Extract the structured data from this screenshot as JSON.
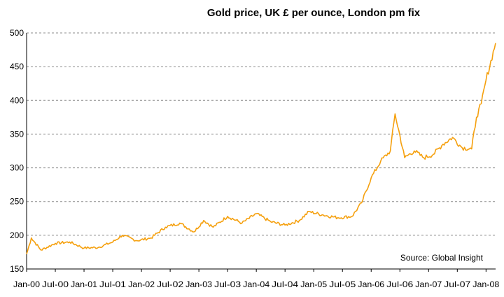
{
  "chart_data": {
    "type": "line",
    "title": "Gold price, UK £ per ounce, London pm fix",
    "source": "Source: Global Insight",
    "xlabel": "",
    "ylabel": "",
    "ylim": [
      150,
      500
    ],
    "yticks": [
      150,
      200,
      250,
      300,
      350,
      400,
      450,
      500
    ],
    "grid": "horizontal",
    "x_tick_labels": [
      "Jan-00",
      "Jul-00",
      "Jan-01",
      "Jul-01",
      "Jan-02",
      "Jul-02",
      "Jan-03",
      "Jul-03",
      "Jan-04",
      "Jul-04",
      "Jan-05",
      "Jul-05",
      "Jan-06",
      "Jul-06",
      "Jan-07",
      "Jul-07",
      "Jan-08"
    ],
    "series": [
      {
        "color": "#f5a00e",
        "x": [
          "2000-01",
          "2000-02",
          "2000-04",
          "2000-07",
          "2000-10",
          "2001-01",
          "2001-04",
          "2001-07",
          "2001-09",
          "2001-12",
          "2002-03",
          "2002-06",
          "2002-09",
          "2002-12",
          "2003-02",
          "2003-04",
          "2003-07",
          "2003-10",
          "2004-01",
          "2004-04",
          "2004-07",
          "2004-10",
          "2004-12",
          "2005-03",
          "2005-06",
          "2005-09",
          "2005-11",
          "2006-01",
          "2006-03",
          "2006-05",
          "2006-06",
          "2006-08",
          "2006-10",
          "2006-12",
          "2007-02",
          "2007-04",
          "2007-06",
          "2007-08",
          "2007-10",
          "2007-11",
          "2007-12",
          "2008-01",
          "2008-03"
        ],
        "y": [
          172,
          196,
          178,
          188,
          190,
          181,
          182,
          190,
          200,
          192,
          196,
          212,
          218,
          205,
          222,
          212,
          228,
          218,
          232,
          220,
          215,
          222,
          235,
          230,
          226,
          228,
          248,
          285,
          310,
          325,
          380,
          315,
          325,
          315,
          320,
          335,
          345,
          330,
          328,
          375,
          395,
          430,
          485
        ]
      }
    ]
  }
}
